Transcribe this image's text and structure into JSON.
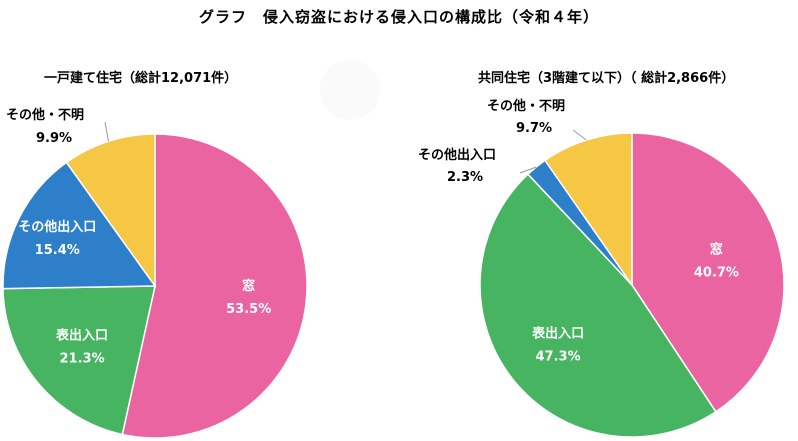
{
  "title": "グラフ　侵入窃盗における侵入口の構成比（令和４年）",
  "chart_data": [
    {
      "type": "pie",
      "subtitle": "一戸建て住宅（総計12,071件）",
      "categories": [
        "窓",
        "表出入口",
        "その他出入口",
        "その他・不明"
      ],
      "values": [
        53.5,
        21.3,
        15.4,
        9.9
      ],
      "labels": [
        "53.5%",
        "21.3%",
        "15.4%",
        "9.9%"
      ],
      "colors": [
        "#E964A1",
        "#47B461",
        "#2E7FC9",
        "#F6C744"
      ],
      "label_placement": [
        "inside",
        "inside",
        "inside",
        "outside"
      ]
    },
    {
      "type": "pie",
      "subtitle": "共同住宅（3階建て以下）（ 総計2,866件）",
      "categories": [
        "窓",
        "表出入口",
        "その他出入口",
        "その他・不明"
      ],
      "values": [
        40.7,
        47.3,
        2.3,
        9.7
      ],
      "labels": [
        "40.7%",
        "47.3%",
        "2.3%",
        "9.7%"
      ],
      "colors": [
        "#E964A1",
        "#47B461",
        "#2E7FC9",
        "#F6C744"
      ],
      "label_placement": [
        "inside",
        "inside",
        "outside",
        "outside"
      ]
    }
  ]
}
